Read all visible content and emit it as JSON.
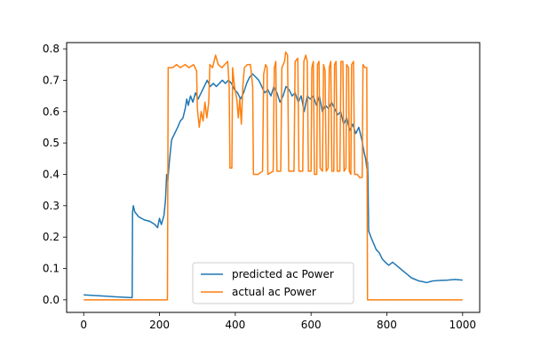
{
  "chart_data": {
    "type": "line",
    "title": "",
    "xlabel": "",
    "ylabel": "",
    "xlim": [
      -45,
      1045
    ],
    "ylim": [
      -0.04,
      0.82
    ],
    "xticks": [
      0,
      200,
      400,
      600,
      800,
      1000
    ],
    "xtick_labels": [
      "0",
      "200",
      "400",
      "600",
      "800",
      "1000"
    ],
    "yticks": [
      0.0,
      0.1,
      0.2,
      0.3,
      0.4,
      0.5,
      0.6,
      0.7,
      0.8
    ],
    "ytick_labels": [
      "0.0",
      "0.1",
      "0.2",
      "0.3",
      "0.4",
      "0.5",
      "0.6",
      "0.7",
      "0.8"
    ],
    "grid": false,
    "legend_position": "lower center",
    "series": [
      {
        "name": "predicted ac Power",
        "color": "#1f77b4",
        "points": [
          [
            0,
            0.016
          ],
          [
            40,
            0.013
          ],
          [
            80,
            0.01
          ],
          [
            128,
            0.007
          ],
          [
            129,
            0.28
          ],
          [
            131,
            0.3
          ],
          [
            135,
            0.28
          ],
          [
            145,
            0.265
          ],
          [
            160,
            0.255
          ],
          [
            175,
            0.25
          ],
          [
            188,
            0.24
          ],
          [
            195,
            0.23
          ],
          [
            200,
            0.26
          ],
          [
            205,
            0.24
          ],
          [
            212,
            0.27
          ],
          [
            216,
            0.32
          ],
          [
            219,
            0.4
          ],
          [
            222,
            0.38
          ],
          [
            226,
            0.44
          ],
          [
            232,
            0.51
          ],
          [
            240,
            0.53
          ],
          [
            248,
            0.55
          ],
          [
            255,
            0.57
          ],
          [
            262,
            0.58
          ],
          [
            268,
            0.61
          ],
          [
            272,
            0.64
          ],
          [
            276,
            0.62
          ],
          [
            282,
            0.65
          ],
          [
            288,
            0.63
          ],
          [
            295,
            0.66
          ],
          [
            302,
            0.64
          ],
          [
            310,
            0.66
          ],
          [
            318,
            0.68
          ],
          [
            326,
            0.7
          ],
          [
            334,
            0.68
          ],
          [
            342,
            0.69
          ],
          [
            350,
            0.68
          ],
          [
            358,
            0.69
          ],
          [
            366,
            0.7
          ],
          [
            374,
            0.69
          ],
          [
            382,
            0.7
          ],
          [
            390,
            0.69
          ],
          [
            398,
            0.67
          ],
          [
            406,
            0.66
          ],
          [
            414,
            0.64
          ],
          [
            422,
            0.66
          ],
          [
            430,
            0.69
          ],
          [
            438,
            0.71
          ],
          [
            446,
            0.72
          ],
          [
            454,
            0.71
          ],
          [
            462,
            0.7
          ],
          [
            470,
            0.68
          ],
          [
            478,
            0.66
          ],
          [
            486,
            0.67
          ],
          [
            494,
            0.65
          ],
          [
            502,
            0.68
          ],
          [
            510,
            0.66
          ],
          [
            518,
            0.63
          ],
          [
            526,
            0.65
          ],
          [
            534,
            0.68
          ],
          [
            542,
            0.67
          ],
          [
            550,
            0.65
          ],
          [
            558,
            0.66
          ],
          [
            566,
            0.63
          ],
          [
            574,
            0.65
          ],
          [
            582,
            0.6
          ],
          [
            590,
            0.65
          ],
          [
            598,
            0.64
          ],
          [
            606,
            0.65
          ],
          [
            614,
            0.62
          ],
          [
            622,
            0.65
          ],
          [
            630,
            0.6
          ],
          [
            638,
            0.62
          ],
          [
            646,
            0.61
          ],
          [
            654,
            0.63
          ],
          [
            662,
            0.61
          ],
          [
            670,
            0.59
          ],
          [
            678,
            0.6
          ],
          [
            686,
            0.56
          ],
          [
            694,
            0.58
          ],
          [
            702,
            0.54
          ],
          [
            710,
            0.56
          ],
          [
            718,
            0.53
          ],
          [
            726,
            0.55
          ],
          [
            734,
            0.51
          ],
          [
            740,
            0.47
          ],
          [
            744,
            0.45
          ],
          [
            747,
            0.42
          ],
          [
            749,
            0.44
          ],
          [
            750,
            0.4
          ],
          [
            752,
            0.22
          ],
          [
            758,
            0.2
          ],
          [
            765,
            0.18
          ],
          [
            772,
            0.16
          ],
          [
            780,
            0.15
          ],
          [
            788,
            0.13
          ],
          [
            796,
            0.12
          ],
          [
            805,
            0.11
          ],
          [
            815,
            0.12
          ],
          [
            825,
            0.11
          ],
          [
            835,
            0.1
          ],
          [
            845,
            0.09
          ],
          [
            855,
            0.08
          ],
          [
            865,
            0.07
          ],
          [
            875,
            0.065
          ],
          [
            885,
            0.06
          ],
          [
            895,
            0.058
          ],
          [
            905,
            0.055
          ],
          [
            920,
            0.06
          ],
          [
            940,
            0.062
          ],
          [
            960,
            0.063
          ],
          [
            980,
            0.065
          ],
          [
            1000,
            0.063
          ]
        ]
      },
      {
        "name": "actual ac Power",
        "color": "#ff7f0e",
        "points": [
          [
            0,
            0.0
          ],
          [
            221,
            0.0
          ],
          [
            223,
            0.74
          ],
          [
            235,
            0.74
          ],
          [
            245,
            0.75
          ],
          [
            255,
            0.74
          ],
          [
            268,
            0.75
          ],
          [
            278,
            0.74
          ],
          [
            290,
            0.75
          ],
          [
            298,
            0.73
          ],
          [
            300,
            0.61
          ],
          [
            305,
            0.55
          ],
          [
            310,
            0.6
          ],
          [
            315,
            0.57
          ],
          [
            320,
            0.63
          ],
          [
            325,
            0.58
          ],
          [
            330,
            0.63
          ],
          [
            333,
            0.75
          ],
          [
            340,
            0.74
          ],
          [
            348,
            0.78
          ],
          [
            355,
            0.75
          ],
          [
            365,
            0.74
          ],
          [
            372,
            0.75
          ],
          [
            380,
            0.76
          ],
          [
            384,
            0.68
          ],
          [
            386,
            0.42
          ],
          [
            391,
            0.42
          ],
          [
            393,
            0.74
          ],
          [
            398,
            0.68
          ],
          [
            404,
            0.64
          ],
          [
            408,
            0.58
          ],
          [
            412,
            0.64
          ],
          [
            416,
            0.56
          ],
          [
            420,
            0.68
          ],
          [
            424,
            0.74
          ],
          [
            432,
            0.75
          ],
          [
            440,
            0.75
          ],
          [
            446,
            0.68
          ],
          [
            448,
            0.4
          ],
          [
            460,
            0.4
          ],
          [
            472,
            0.41
          ],
          [
            475,
            0.72
          ],
          [
            480,
            0.75
          ],
          [
            484,
            0.74
          ],
          [
            486,
            0.4
          ],
          [
            500,
            0.41
          ],
          [
            503,
            0.74
          ],
          [
            507,
            0.76
          ],
          [
            510,
            0.41
          ],
          [
            520,
            0.41
          ],
          [
            523,
            0.74
          ],
          [
            530,
            0.76
          ],
          [
            533,
            0.79
          ],
          [
            538,
            0.78
          ],
          [
            541,
            0.41
          ],
          [
            555,
            0.41
          ],
          [
            558,
            0.76
          ],
          [
            565,
            0.77
          ],
          [
            568,
            0.41
          ],
          [
            578,
            0.41
          ],
          [
            581,
            0.76
          ],
          [
            586,
            0.78
          ],
          [
            590,
            0.76
          ],
          [
            593,
            0.41
          ],
          [
            600,
            0.41
          ],
          [
            602,
            0.74
          ],
          [
            606,
            0.76
          ],
          [
            609,
            0.4
          ],
          [
            615,
            0.4
          ],
          [
            617,
            0.75
          ],
          [
            621,
            0.76
          ],
          [
            624,
            0.42
          ],
          [
            630,
            0.41
          ],
          [
            633,
            0.75
          ],
          [
            637,
            0.73
          ],
          [
            640,
            0.41
          ],
          [
            645,
            0.42
          ],
          [
            648,
            0.74
          ],
          [
            652,
            0.76
          ],
          [
            655,
            0.41
          ],
          [
            660,
            0.41
          ],
          [
            662,
            0.75
          ],
          [
            666,
            0.76
          ],
          [
            669,
            0.41
          ],
          [
            676,
            0.41
          ],
          [
            679,
            0.76
          ],
          [
            684,
            0.76
          ],
          [
            687,
            0.41
          ],
          [
            692,
            0.42
          ],
          [
            694,
            0.75
          ],
          [
            699,
            0.74
          ],
          [
            701,
            0.41
          ],
          [
            705,
            0.4
          ],
          [
            707,
            0.75
          ],
          [
            712,
            0.76
          ],
          [
            715,
            0.4
          ],
          [
            722,
            0.4
          ],
          [
            728,
            0.39
          ],
          [
            735,
            0.39
          ],
          [
            737,
            0.75
          ],
          [
            742,
            0.74
          ],
          [
            747,
            0.74
          ],
          [
            749,
            0.0
          ],
          [
            1000,
            0.0
          ]
        ]
      }
    ]
  }
}
